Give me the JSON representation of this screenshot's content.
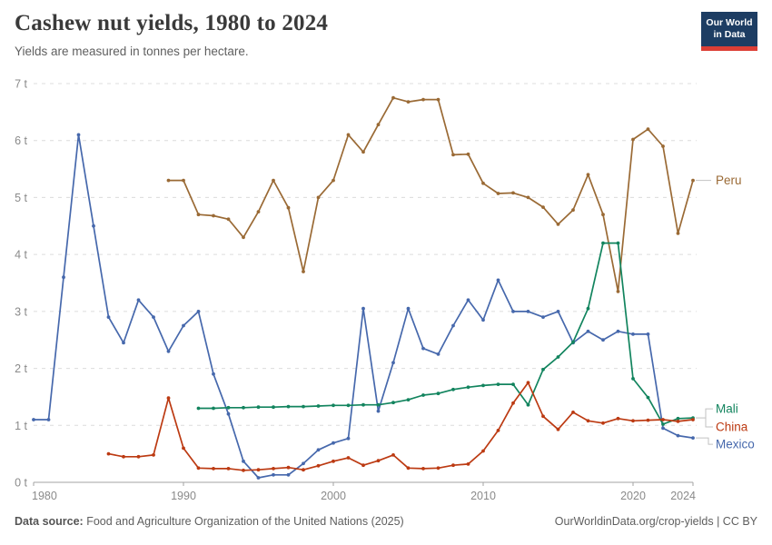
{
  "header": {
    "title": "Cashew nut yields, 1980 to 2024",
    "subtitle": "Yields are measured in tonnes per hectare."
  },
  "logo": {
    "line1": "Our World",
    "line2": "in Data"
  },
  "footer": {
    "source_label": "Data source:",
    "source_text": " Food and Agriculture Organization of the United Nations (2025)",
    "right_text": "OurWorldinData.org/crop-yields | CC BY"
  },
  "chart_data": {
    "type": "line",
    "title": "Cashew nut yields, 1980 to 2024",
    "ylabel": "tonnes per hectare",
    "unit": "t",
    "grid": true,
    "legend_position": "right-end-labels",
    "x_domain": [
      1980,
      2024
    ],
    "y_domain": [
      0,
      7
    ],
    "x_ticks": [
      {
        "v": 1980,
        "label": "1980",
        "anchor": "start"
      },
      {
        "v": 1990,
        "label": "1990",
        "anchor": "middle"
      },
      {
        "v": 2000,
        "label": "2000",
        "anchor": "middle"
      },
      {
        "v": 2010,
        "label": "2010",
        "anchor": "middle"
      },
      {
        "v": 2020,
        "label": "2020",
        "anchor": "middle"
      },
      {
        "v": 2024,
        "label": "2024",
        "anchor": "end"
      }
    ],
    "y_ticks": [
      {
        "v": 0,
        "label": "0 t"
      },
      {
        "v": 1,
        "label": "1 t"
      },
      {
        "v": 2,
        "label": "2 t"
      },
      {
        "v": 3,
        "label": "3 t"
      },
      {
        "v": 4,
        "label": "4 t"
      },
      {
        "v": 5,
        "label": "5 t"
      },
      {
        "v": 6,
        "label": "6 t"
      },
      {
        "v": 7,
        "label": "7 t"
      }
    ],
    "series": [
      {
        "name": "Peru",
        "color": "#9a6a35",
        "start_year": 1989,
        "values": [
          5.3,
          5.3,
          4.7,
          4.68,
          4.62,
          4.3,
          4.75,
          5.3,
          4.82,
          3.7,
          5.0,
          5.3,
          6.1,
          5.8,
          6.28,
          6.75,
          6.68,
          6.72,
          6.72,
          5.75,
          5.76,
          5.25,
          5.07,
          5.08,
          5.0,
          4.83,
          4.53,
          4.78,
          5.4,
          4.7,
          3.35,
          6.02,
          6.2,
          5.9,
          4.37,
          5.3
        ]
      },
      {
        "name": "Mexico",
        "color": "#4668ac",
        "start_year": 1980,
        "values": [
          1.1,
          1.1,
          3.6,
          6.1,
          4.5,
          2.9,
          2.45,
          3.2,
          2.9,
          2.3,
          2.75,
          3.0,
          1.9,
          1.2,
          0.37,
          0.08,
          0.13,
          0.13,
          0.33,
          0.57,
          0.69,
          0.77,
          3.05,
          1.25,
          2.1,
          3.05,
          2.35,
          2.25,
          2.75,
          3.2,
          2.85,
          3.55,
          3.0,
          3.0,
          2.9,
          3.0,
          2.45,
          2.65,
          2.5,
          2.65,
          2.6,
          2.6,
          0.95,
          0.82,
          0.78
        ]
      },
      {
        "name": "Mali",
        "color": "#12845e",
        "start_year": 1991,
        "values": [
          1.3,
          1.3,
          1.31,
          1.31,
          1.32,
          1.32,
          1.33,
          1.33,
          1.34,
          1.35,
          1.35,
          1.36,
          1.36,
          1.4,
          1.45,
          1.53,
          1.56,
          1.63,
          1.67,
          1.7,
          1.72,
          1.72,
          1.36,
          1.98,
          2.2,
          2.46,
          3.05,
          4.2,
          4.2,
          1.82,
          1.49,
          1.02,
          1.12,
          1.13
        ]
      },
      {
        "name": "China",
        "color": "#bc3a12",
        "start_year": 1985,
        "values": [
          0.5,
          0.45,
          0.45,
          0.48,
          1.48,
          0.6,
          0.25,
          0.24,
          0.24,
          0.21,
          0.22,
          0.24,
          0.26,
          0.22,
          0.29,
          0.37,
          0.43,
          0.3,
          0.38,
          0.48,
          0.25,
          0.24,
          0.25,
          0.3,
          0.32,
          0.55,
          0.91,
          1.39,
          1.75,
          1.16,
          0.93,
          1.23,
          1.08,
          1.04,
          1.12,
          1.08,
          1.09,
          1.1,
          1.07,
          1.1
        ]
      }
    ],
    "end_labels": [
      "Peru",
      "Mali",
      "China",
      "Mexico"
    ]
  }
}
